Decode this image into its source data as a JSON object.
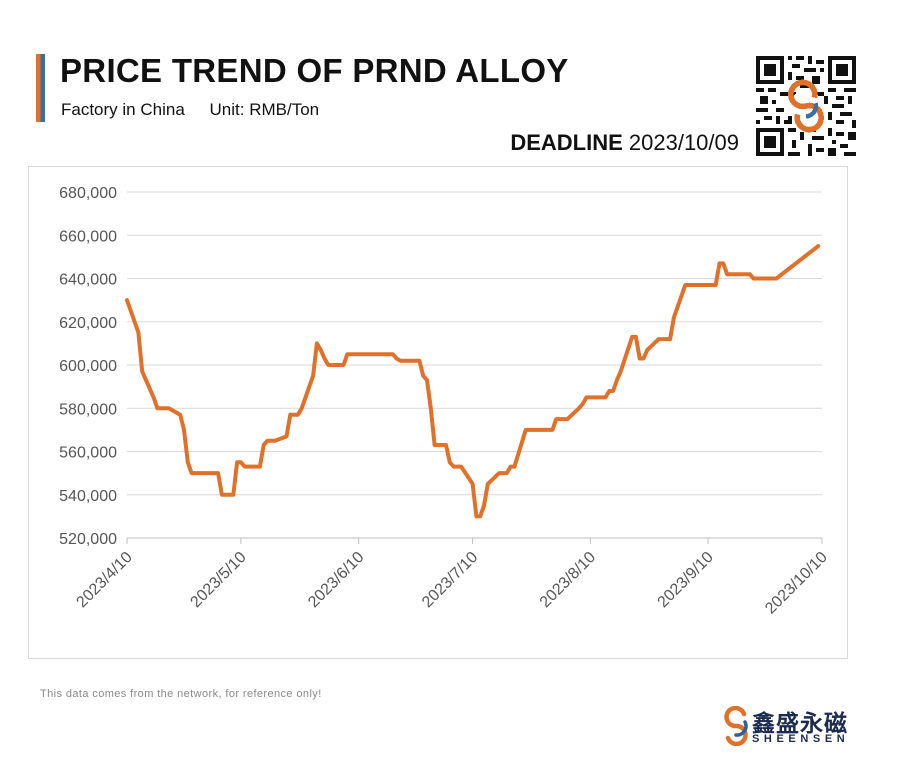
{
  "header": {
    "title": "PRICE TREND OF PRND ALLOY",
    "subtitle_source": "Factory in China",
    "subtitle_unit": "Unit: RMB/Ton",
    "deadline_label": "DEADLINE",
    "deadline_date": "2023/10/09",
    "accent_colors": [
      "#e0712a",
      "#3a6fa8"
    ]
  },
  "footer": {
    "note": "This data comes from the network, for reference only!",
    "brand_cn": "鑫盛永磁",
    "brand_en": "SHEENSEN",
    "brand_icon": "sheensen-logo-icon",
    "qr_icon": "qr-code-icon"
  },
  "chart_data": {
    "type": "line",
    "title": "",
    "xlabel": "",
    "ylabel": "",
    "ylim": [
      520000,
      680000
    ],
    "y_ticks": [
      520000,
      540000,
      560000,
      580000,
      600000,
      620000,
      640000,
      660000,
      680000
    ],
    "y_tick_labels": [
      "520,000",
      "540,000",
      "560,000",
      "580,000",
      "600,000",
      "620,000",
      "640,000",
      "660,000",
      "680,000"
    ],
    "x_range": [
      "2023/4/10",
      "2023/10/10"
    ],
    "x_ticks": [
      "2023/4/10",
      "2023/5/10",
      "2023/6/10",
      "2023/7/10",
      "2023/8/10",
      "2023/9/10",
      "2023/10/10"
    ],
    "grid": true,
    "legend": "none",
    "line_color": "#e0712a",
    "series": [
      {
        "x": [
          "2023/4/10",
          "2023/4/13",
          "2023/4/14",
          "2023/4/17",
          "2023/4/18",
          "2023/4/20",
          "2023/4/21",
          "2023/4/24",
          "2023/4/25",
          "2023/4/26",
          "2023/4/27",
          "2023/4/28",
          "2023/5/4",
          "2023/5/5",
          "2023/5/8",
          "2023/5/9",
          "2023/5/10",
          "2023/5/11",
          "2023/5/12",
          "2023/5/15",
          "2023/5/16",
          "2023/5/17",
          "2023/5/18",
          "2023/5/19",
          "2023/5/22",
          "2023/5/23",
          "2023/5/24",
          "2023/5/25",
          "2023/5/26",
          "2023/5/29",
          "2023/5/30",
          "2023/5/31",
          "2023/6/1",
          "2023/6/2",
          "2023/6/5",
          "2023/6/6",
          "2023/6/7",
          "2023/6/8",
          "2023/6/9",
          "2023/6/12",
          "2023/6/13",
          "2023/6/14",
          "2023/6/15",
          "2023/6/16",
          "2023/6/19",
          "2023/6/20",
          "2023/6/21",
          "2023/6/26",
          "2023/6/27",
          "2023/6/28",
          "2023/6/29",
          "2023/6/30",
          "2023/7/3",
          "2023/7/4",
          "2023/7/5",
          "2023/7/6",
          "2023/7/7",
          "2023/7/10",
          "2023/7/11",
          "2023/7/12",
          "2023/7/13",
          "2023/7/14",
          "2023/7/17",
          "2023/7/18",
          "2023/7/19",
          "2023/7/20",
          "2023/7/21",
          "2023/7/24",
          "2023/7/25",
          "2023/7/26",
          "2023/7/27",
          "2023/7/28",
          "2023/7/31",
          "2023/8/1",
          "2023/8/2",
          "2023/8/3",
          "2023/8/4",
          "2023/8/7",
          "2023/8/8",
          "2023/8/9",
          "2023/8/10",
          "2023/8/11",
          "2023/8/14",
          "2023/8/15",
          "2023/8/16",
          "2023/8/17",
          "2023/8/18",
          "2023/8/21",
          "2023/8/22",
          "2023/8/23",
          "2023/8/24",
          "2023/8/25",
          "2023/8/28",
          "2023/8/29",
          "2023/8/30",
          "2023/8/31",
          "2023/9/1",
          "2023/9/4",
          "2023/9/5",
          "2023/9/6",
          "2023/9/7",
          "2023/9/8",
          "2023/9/11",
          "2023/9/12",
          "2023/9/13",
          "2023/9/14",
          "2023/9/15",
          "2023/9/18",
          "2023/9/19",
          "2023/9/20",
          "2023/9/21",
          "2023/9/22",
          "2023/9/25",
          "2023/9/26",
          "2023/9/27",
          "2023/9/28",
          "2023/10/9"
        ],
        "y": [
          630000,
          615000,
          597000,
          585000,
          580000,
          580000,
          580000,
          577000,
          570000,
          555000,
          550000,
          550000,
          550000,
          540000,
          540000,
          555000,
          555000,
          553000,
          553000,
          553000,
          563000,
          565000,
          565000,
          565000,
          567000,
          577000,
          577000,
          577000,
          580000,
          595000,
          610000,
          607000,
          603000,
          600000,
          600000,
          600000,
          605000,
          605000,
          605000,
          605000,
          605000,
          605000,
          605000,
          605000,
          605000,
          603000,
          602000,
          602000,
          595000,
          593000,
          580000,
          563000,
          563000,
          555000,
          553000,
          553000,
          553000,
          545000,
          530000,
          530000,
          535000,
          545000,
          550000,
          550000,
          550000,
          553000,
          553000,
          570000,
          570000,
          570000,
          570000,
          570000,
          570000,
          575000,
          575000,
          575000,
          575000,
          580000,
          582000,
          585000,
          585000,
          585000,
          585000,
          588000,
          588000,
          593000,
          597000,
          613000,
          613000,
          603000,
          603000,
          607000,
          612000,
          612000,
          612000,
          612000,
          622000,
          637000,
          637000,
          637000,
          637000,
          637000,
          637000,
          637000,
          647000,
          647000,
          642000,
          642000,
          642000,
          642000,
          642000,
          640000,
          640000,
          640000,
          640000,
          640000,
          655000
        ]
      }
    ]
  }
}
